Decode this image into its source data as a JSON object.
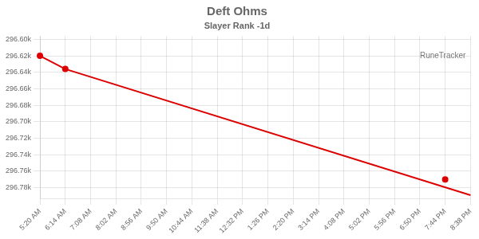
{
  "chart_data": {
    "type": "line",
    "title": "Deft Ohms",
    "subtitle": "Slayer Rank -1d",
    "categories": [
      "5:20 AM",
      "6:14 AM",
      "7:08 AM",
      "8:02 AM",
      "8:56 AM",
      "9:50 AM",
      "10:44 AM",
      "11:38 AM",
      "12:32 PM",
      "1:26 PM",
      "2:20 PM",
      "3:14 PM",
      "4:08 PM",
      "5:02 PM",
      "5:56 PM",
      "6:50 PM",
      "7:44 PM",
      "8:38 PM"
    ],
    "series": [
      {
        "x": [
          "5:20 AM",
          "6:14 AM",
          "8:38 PM"
        ],
        "values": [
          296620,
          296636,
          296789
        ],
        "color": "#dd0000",
        "marker": "none",
        "line_style": "solid"
      },
      {
        "x": [
          "5:20 AM",
          "6:14 AM",
          "7:44 PM"
        ],
        "values": [
          296620,
          296636,
          296770
        ],
        "color": "#dd0000",
        "marker": "circle",
        "line_style": "none"
      }
    ],
    "ylim": [
      296793,
      296596
    ],
    "yticks": [
      {
        "value": 296600,
        "label": "296.60k"
      },
      {
        "value": 296620,
        "label": "296.62k"
      },
      {
        "value": 296640,
        "label": "296.64k"
      },
      {
        "value": 296660,
        "label": "296.66k"
      },
      {
        "value": 296680,
        "label": "296.68k"
      },
      {
        "value": 296700,
        "label": "296.70k"
      },
      {
        "value": 296720,
        "label": "296.72k"
      },
      {
        "value": 296740,
        "label": "296.74k"
      },
      {
        "value": 296760,
        "label": "296.76k"
      },
      {
        "value": 296780,
        "label": "296.78k"
      }
    ],
    "annotations": [
      "RuneTracker"
    ],
    "grid": true
  }
}
